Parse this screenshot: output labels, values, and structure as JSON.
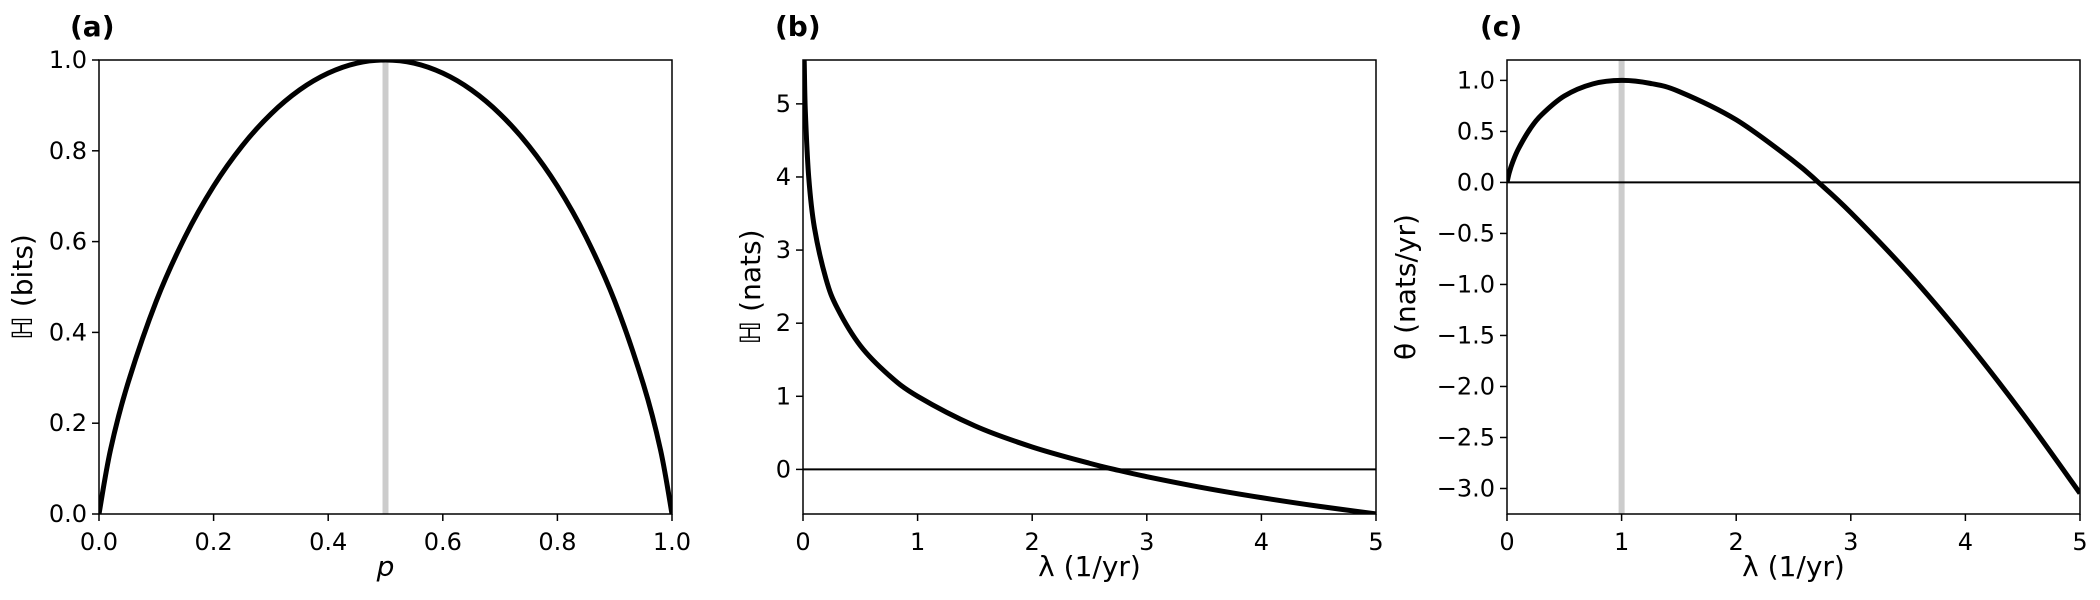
{
  "chart_data": [
    {
      "type": "line",
      "panel_label": "(a)",
      "xlabel": "p",
      "ylabel": "ℍ (bits)",
      "xlim": [
        0,
        1
      ],
      "ylim": [
        0,
        1
      ],
      "xticks": [
        "0.0",
        "0.2",
        "0.4",
        "0.6",
        "0.8",
        "1.0"
      ],
      "yticks": [
        "0.0",
        "0.2",
        "0.4",
        "0.6",
        "0.8",
        "1.0"
      ],
      "series": [
        {
          "x": [
            0.0,
            0.02,
            0.05,
            0.1,
            0.15,
            0.2,
            0.25,
            0.3,
            0.35,
            0.4,
            0.45,
            0.5,
            0.55,
            0.6,
            0.65,
            0.7,
            0.75,
            0.8,
            0.85,
            0.9,
            0.95,
            0.98,
            1.0
          ],
          "y": [
            0.0,
            0.141,
            0.286,
            0.469,
            0.61,
            0.722,
            0.811,
            0.881,
            0.934,
            0.971,
            0.993,
            1.0,
            0.993,
            0.971,
            0.934,
            0.881,
            0.811,
            0.722,
            0.61,
            0.469,
            0.286,
            0.141,
            0.0
          ]
        }
      ],
      "vline": {
        "x": 0.5,
        "color": "#cccccc"
      },
      "hline": null,
      "line_color": "#000000"
    },
    {
      "type": "line",
      "panel_label": "(b)",
      "xlabel": "λ (1/yr)",
      "ylabel": "ℍ (nats)",
      "xlim": [
        0,
        5
      ],
      "ylim": [
        -0.61,
        5.6
      ],
      "xticks": [
        "0",
        "1",
        "2",
        "3",
        "4",
        "5"
      ],
      "yticks": [
        "0",
        "1",
        "2",
        "3",
        "4",
        "5"
      ],
      "series": [
        {
          "x": [
            0.0045,
            0.01,
            0.02,
            0.05,
            0.1,
            0.2,
            0.3,
            0.5,
            0.75,
            1.0,
            1.5,
            2.0,
            2.5,
            2.718,
            3.0,
            3.5,
            4.0,
            4.5,
            5.0
          ],
          "y": [
            5.4,
            5.605,
            4.912,
            3.996,
            3.303,
            2.609,
            2.204,
            1.693,
            1.288,
            1.0,
            0.595,
            0.307,
            0.084,
            0.0,
            -0.099,
            -0.253,
            -0.386,
            -0.504,
            -0.609
          ]
        }
      ],
      "vline": null,
      "hline": {
        "y": 0,
        "color": "#000000"
      },
      "line_color": "#000000"
    },
    {
      "type": "line",
      "panel_label": "(c)",
      "xlabel": "λ (1/yr)",
      "ylabel": "θ (nats/yr)",
      "xlim": [
        0,
        5
      ],
      "ylim": [
        -3.25,
        1.2
      ],
      "xticks": [
        "0",
        "1",
        "2",
        "3",
        "4",
        "5"
      ],
      "yticks": [
        "1.0",
        "0.5",
        "0.0",
        "−0.5",
        "−1.0",
        "−1.5",
        "−2.0",
        "−2.5",
        "−3.0"
      ],
      "series": [
        {
          "x": [
            0.0,
            0.02,
            0.05,
            0.1,
            0.2,
            0.3,
            0.5,
            0.75,
            1.0,
            1.25,
            1.5,
            2.0,
            2.5,
            2.718,
            3.0,
            3.5,
            4.0,
            4.5,
            5.0
          ],
          "y": [
            0.0,
            0.098,
            0.2,
            0.33,
            0.522,
            0.661,
            0.847,
            0.966,
            1.0,
            0.971,
            0.892,
            0.614,
            0.209,
            0.0,
            -0.296,
            -0.885,
            -1.545,
            -2.268,
            -3.047
          ]
        }
      ],
      "vline": {
        "x": 1.0,
        "color": "#cccccc"
      },
      "hline": {
        "y": 0,
        "color": "#000000"
      },
      "line_color": "#000000"
    }
  ]
}
